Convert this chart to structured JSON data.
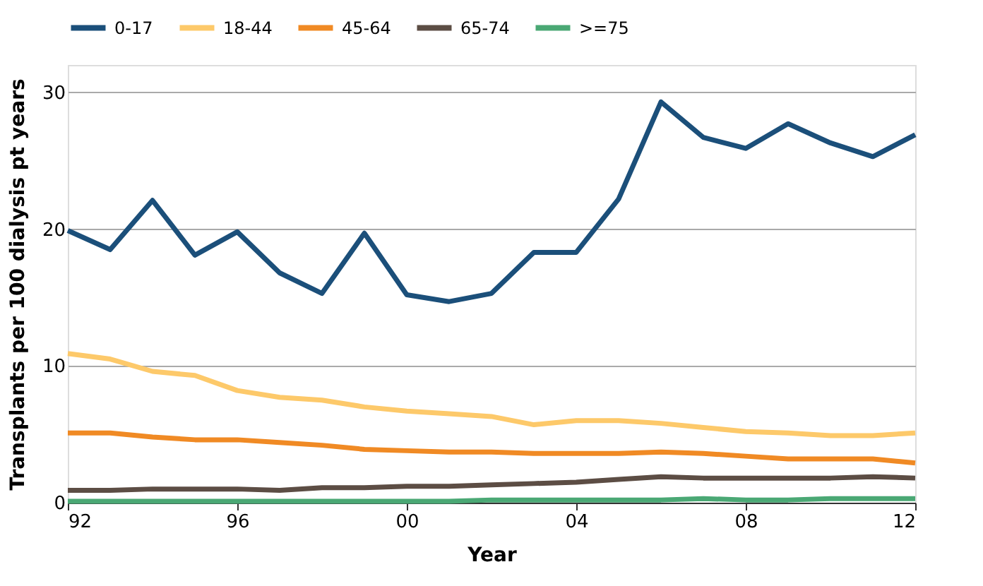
{
  "chart_data": {
    "type": "line",
    "xlabel": "Year",
    "ylabel": "Transplants per 100 dialysis pt years",
    "x": [
      1992,
      1993,
      1994,
      1995,
      1996,
      1997,
      1998,
      1999,
      2000,
      2001,
      2002,
      2003,
      2004,
      2005,
      2006,
      2007,
      2008,
      2009,
      2010,
      2011,
      2012
    ],
    "xlim": [
      1992,
      2012
    ],
    "xticks": [
      {
        "value": 1992,
        "label": "92"
      },
      {
        "value": 1996,
        "label": "96"
      },
      {
        "value": 2000,
        "label": "00"
      },
      {
        "value": 2004,
        "label": "04"
      },
      {
        "value": 2008,
        "label": "08"
      },
      {
        "value": 2012,
        "label": "12"
      }
    ],
    "ylim": [
      0,
      32
    ],
    "yticks": [
      0,
      10,
      20,
      30
    ],
    "grid": "y",
    "legend": "top",
    "marker": "none",
    "line_style": "solid",
    "series": [
      {
        "name": "0-17",
        "color": "#1b4f7a",
        "values": [
          19.9,
          18.5,
          22.1,
          18.1,
          19.8,
          16.8,
          15.3,
          19.7,
          15.2,
          14.7,
          15.3,
          18.3,
          18.3,
          22.2,
          29.3,
          26.7,
          25.9,
          27.7,
          26.3,
          25.3,
          26.9
        ]
      },
      {
        "name": "18-44",
        "color": "#fdc96a",
        "values": [
          10.9,
          10.5,
          9.6,
          9.3,
          8.2,
          7.7,
          7.5,
          7.0,
          6.7,
          6.5,
          6.3,
          5.7,
          6.0,
          6.0,
          5.8,
          5.5,
          5.2,
          5.1,
          4.9,
          4.9,
          5.1
        ]
      },
      {
        "name": "45-64",
        "color": "#f08a24",
        "values": [
          5.1,
          5.1,
          4.8,
          4.6,
          4.6,
          4.4,
          4.2,
          3.9,
          3.8,
          3.7,
          3.7,
          3.6,
          3.6,
          3.6,
          3.7,
          3.6,
          3.4,
          3.2,
          3.2,
          3.2,
          2.9
        ]
      },
      {
        "name": "65-74",
        "color": "#5c4d44",
        "values": [
          0.9,
          0.9,
          1.0,
          1.0,
          1.0,
          0.9,
          1.1,
          1.1,
          1.2,
          1.2,
          1.3,
          1.4,
          1.5,
          1.7,
          1.9,
          1.8,
          1.8,
          1.8,
          1.8,
          1.9,
          1.8
        ]
      },
      {
        "name": ">=75",
        "color": "#4aa874",
        "values": [
          0.1,
          0.1,
          0.1,
          0.1,
          0.1,
          0.1,
          0.1,
          0.1,
          0.1,
          0.1,
          0.2,
          0.2,
          0.2,
          0.2,
          0.2,
          0.3,
          0.2,
          0.2,
          0.3,
          0.3,
          0.3
        ]
      }
    ]
  }
}
